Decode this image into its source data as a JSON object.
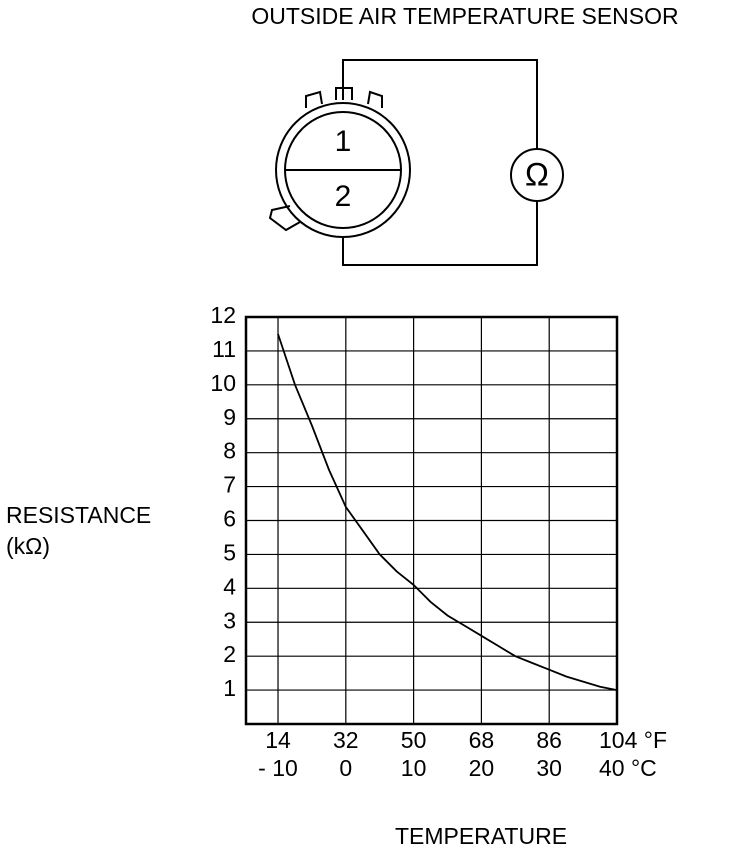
{
  "diagram": {
    "title": "OUTSIDE AIR TEMPERATURE SENSOR",
    "pins": [
      "1",
      "2"
    ],
    "meter": "Ω"
  },
  "chart_data": {
    "type": "line",
    "color": "#000000",
    "grid": true,
    "ylabel": [
      "RESISTANCE",
      "(kΩ)"
    ],
    "xlabel": "TEMPERATURE",
    "x": [
      14,
      18.5,
      23,
      27.5,
      32,
      36.5,
      41,
      45.5,
      50,
      54.5,
      59,
      63.5,
      68,
      72.5,
      77,
      81.5,
      86,
      90.5,
      95,
      99.5,
      104
    ],
    "values": [
      11.5,
      10.0,
      8.8,
      7.5,
      6.4,
      5.7,
      5.0,
      4.5,
      4.1,
      3.6,
      3.2,
      2.9,
      2.6,
      2.3,
      2.0,
      1.8,
      1.6,
      1.4,
      1.25,
      1.1,
      1.0
    ],
    "xlim": [
      5.5,
      104
    ],
    "xticks": [
      14,
      32,
      50,
      68,
      86,
      {
        "value": 104,
        "label": "104 °F"
      }
    ],
    "x2lim": [
      -14.72,
      40
    ],
    "x2ticks": [
      {
        "value": -10,
        "label": "- 10"
      },
      0,
      10,
      20,
      30,
      {
        "value": 40,
        "label": "40 °C"
      }
    ],
    "ylim": [
      0,
      12
    ],
    "yticks": [
      1,
      2,
      3,
      4,
      5,
      6,
      7,
      8,
      9,
      10,
      11,
      12
    ]
  }
}
